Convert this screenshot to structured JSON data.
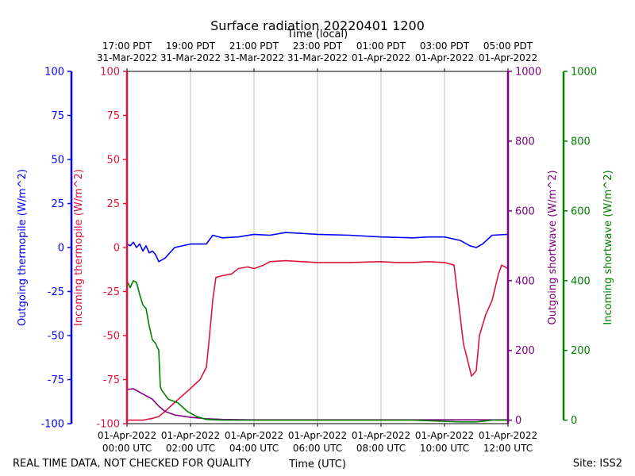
{
  "chart_data": {
    "type": "line",
    "title": "Surface radiation 20220401 1200",
    "top_xlabel": "Time (local)",
    "xlabel": "Time (UTC)",
    "footer_left": "REAL TIME DATA, NOT CHECKED FOR QUALITY",
    "footer_right": "Site: ISS2",
    "x_range_hours_utc": [
      0,
      12
    ],
    "bottom_ticks": [
      {
        "h": 0,
        "line1": "01-Apr-2022",
        "line2": "00:00 UTC"
      },
      {
        "h": 2,
        "line1": "01-Apr-2022",
        "line2": "02:00 UTC"
      },
      {
        "h": 4,
        "line1": "01-Apr-2022",
        "line2": "04:00 UTC"
      },
      {
        "h": 6,
        "line1": "01-Apr-2022",
        "line2": "06:00 UTC"
      },
      {
        "h": 8,
        "line1": "01-Apr-2022",
        "line2": "08:00 UTC"
      },
      {
        "h": 10,
        "line1": "01-Apr-2022",
        "line2": "10:00 UTC"
      },
      {
        "h": 12,
        "line1": "01-Apr-2022",
        "line2": "12:00 UTC"
      }
    ],
    "top_ticks": [
      {
        "h": 0,
        "line1": "17:00 PDT",
        "line2": "31-Mar-2022"
      },
      {
        "h": 2,
        "line1": "19:00 PDT",
        "line2": "31-Mar-2022"
      },
      {
        "h": 4,
        "line1": "21:00 PDT",
        "line2": "31-Mar-2022"
      },
      {
        "h": 6,
        "line1": "23:00 PDT",
        "line2": "31-Mar-2022"
      },
      {
        "h": 8,
        "line1": "01:00 PDT",
        "line2": "01-Apr-2022"
      },
      {
        "h": 10,
        "line1": "03:00 PDT",
        "line2": "01-Apr-2022"
      },
      {
        "h": 12,
        "line1": "05:00 PDT",
        "line2": "01-Apr-2022"
      }
    ],
    "axes": [
      {
        "key": "out_thermo",
        "label": "Outgoing thermopile (W/m^2)",
        "color": "#0000ff",
        "ylim": [
          -100,
          100
        ],
        "ticks": [
          -100,
          -75,
          -50,
          -25,
          0,
          25,
          50,
          75,
          100
        ]
      },
      {
        "key": "in_thermo",
        "label": "Incoming thermopile (W/m^2)",
        "color": "#dc143c",
        "ylim": [
          -100,
          100
        ],
        "ticks": [
          -100,
          -75,
          -50,
          -25,
          0,
          25,
          50,
          75,
          100
        ]
      },
      {
        "key": "out_sw",
        "label": "Outgoing shortwave (W/m^2)",
        "color": "#800080",
        "ylim": [
          -10,
          1000
        ],
        "ticks": [
          0,
          200,
          400,
          600,
          800,
          1000
        ]
      },
      {
        "key": "in_sw",
        "label": "Incoming shortwave (W/m^2)",
        "color": "#008000",
        "ylim": [
          -10,
          1000
        ],
        "ticks": [
          0,
          200,
          400,
          600,
          800,
          1000
        ]
      }
    ],
    "series": [
      {
        "name": "Outgoing thermopile",
        "axis": "out_thermo",
        "color": "#0000ff",
        "points": [
          [
            0,
            2
          ],
          [
            0.1,
            1
          ],
          [
            0.2,
            3
          ],
          [
            0.3,
            0
          ],
          [
            0.4,
            2
          ],
          [
            0.5,
            -2
          ],
          [
            0.6,
            1
          ],
          [
            0.7,
            -3
          ],
          [
            0.8,
            -2
          ],
          [
            0.9,
            -4
          ],
          [
            1.0,
            -8
          ],
          [
            1.2,
            -6
          ],
          [
            1.5,
            0
          ],
          [
            2.0,
            2
          ],
          [
            2.5,
            2
          ],
          [
            2.7,
            7
          ],
          [
            3.0,
            5.5
          ],
          [
            3.5,
            6
          ],
          [
            4.0,
            7.5
          ],
          [
            4.5,
            7
          ],
          [
            5.0,
            8.5
          ],
          [
            5.5,
            8
          ],
          [
            6.0,
            7.5
          ],
          [
            7.0,
            7
          ],
          [
            8.0,
            6
          ],
          [
            9.0,
            5.5
          ],
          [
            9.5,
            6
          ],
          [
            10.0,
            6
          ],
          [
            10.5,
            4
          ],
          [
            10.8,
            1
          ],
          [
            11.0,
            0
          ],
          [
            11.2,
            2
          ],
          [
            11.5,
            7
          ],
          [
            12.0,
            7.5
          ]
        ]
      },
      {
        "name": "Incoming thermopile",
        "axis": "in_thermo",
        "color": "#dc143c",
        "points": [
          [
            0,
            -98
          ],
          [
            0.5,
            -98
          ],
          [
            0.8,
            -97
          ],
          [
            1.0,
            -96
          ],
          [
            1.2,
            -93
          ],
          [
            1.5,
            -88
          ],
          [
            2.0,
            -80
          ],
          [
            2.3,
            -75
          ],
          [
            2.5,
            -68
          ],
          [
            2.6,
            -50
          ],
          [
            2.7,
            -30
          ],
          [
            2.8,
            -17
          ],
          [
            3.0,
            -16
          ],
          [
            3.3,
            -15
          ],
          [
            3.5,
            -12
          ],
          [
            3.8,
            -11
          ],
          [
            4.0,
            -12
          ],
          [
            4.3,
            -10
          ],
          [
            4.5,
            -8
          ],
          [
            5.0,
            -7.5
          ],
          [
            5.5,
            -8
          ],
          [
            6.0,
            -8.5
          ],
          [
            7.0,
            -8.5
          ],
          [
            8.0,
            -8
          ],
          [
            8.5,
            -8.5
          ],
          [
            9.0,
            -8.5
          ],
          [
            9.5,
            -8
          ],
          [
            10.0,
            -8.5
          ],
          [
            10.3,
            -10
          ],
          [
            10.4,
            -25
          ],
          [
            10.5,
            -40
          ],
          [
            10.6,
            -55
          ],
          [
            10.7,
            -62
          ],
          [
            10.85,
            -73
          ],
          [
            11.0,
            -70
          ],
          [
            11.1,
            -50
          ],
          [
            11.3,
            -38
          ],
          [
            11.5,
            -30
          ],
          [
            11.7,
            -15
          ],
          [
            11.8,
            -10
          ],
          [
            12.0,
            -12
          ]
        ]
      },
      {
        "name": "Outgoing shortwave",
        "axis": "out_sw",
        "color": "#800080",
        "points": [
          [
            0,
            88
          ],
          [
            0.2,
            90
          ],
          [
            0.4,
            80
          ],
          [
            0.6,
            70
          ],
          [
            0.8,
            60
          ],
          [
            1.0,
            40
          ],
          [
            1.2,
            25
          ],
          [
            1.5,
            15
          ],
          [
            2.0,
            8
          ],
          [
            2.5,
            4
          ],
          [
            3.0,
            2
          ],
          [
            4.0,
            1
          ],
          [
            6.0,
            1
          ],
          [
            8.0,
            1
          ],
          [
            10.0,
            1
          ],
          [
            12.0,
            1
          ]
        ]
      },
      {
        "name": "Incoming shortwave",
        "axis": "in_sw",
        "color": "#008000",
        "points": [
          [
            0,
            400
          ],
          [
            0.1,
            380
          ],
          [
            0.2,
            400
          ],
          [
            0.3,
            395
          ],
          [
            0.4,
            360
          ],
          [
            0.5,
            330
          ],
          [
            0.6,
            320
          ],
          [
            0.7,
            270
          ],
          [
            0.8,
            230
          ],
          [
            0.9,
            220
          ],
          [
            1.0,
            200
          ],
          [
            1.05,
            95
          ],
          [
            1.1,
            85
          ],
          [
            1.3,
            60
          ],
          [
            1.6,
            50
          ],
          [
            1.9,
            25
          ],
          [
            2.2,
            10
          ],
          [
            2.5,
            2
          ],
          [
            3.0,
            0
          ],
          [
            6.0,
            0
          ],
          [
            9.0,
            0
          ],
          [
            10.5,
            -5
          ],
          [
            11.0,
            -5
          ],
          [
            11.5,
            0
          ],
          [
            12.0,
            0
          ]
        ]
      }
    ]
  }
}
